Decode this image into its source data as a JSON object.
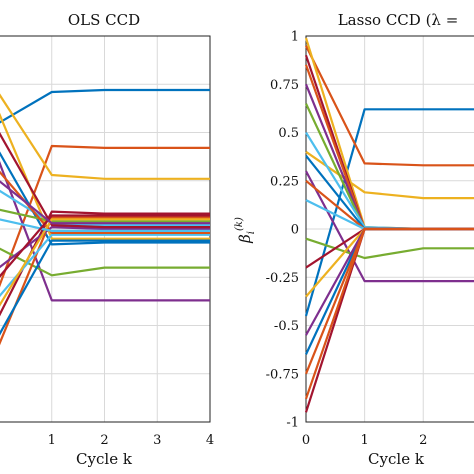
{
  "chart_data": [
    {
      "type": "line",
      "title": "OLS CCD",
      "xlabel": "Cycle k",
      "x": [
        0,
        1,
        2,
        3,
        4
      ],
      "xticks": [
        "1",
        "2",
        "3",
        "4"
      ],
      "xlim": [
        0,
        4
      ],
      "ylim": [
        -1,
        1
      ],
      "grid": true,
      "series": [
        {
          "color": "#0072BD",
          "values": [
            0.55,
            0.71,
            0.72,
            0.72,
            0.72
          ]
        },
        {
          "color": "#D95319",
          "values": [
            -0.3,
            0.43,
            0.42,
            0.42,
            0.42
          ]
        },
        {
          "color": "#EDB120",
          "values": [
            0.7,
            0.28,
            0.26,
            0.26,
            0.26
          ]
        },
        {
          "color": "#7E2F8E",
          "values": [
            0.35,
            -0.37,
            -0.37,
            -0.37,
            -0.37
          ]
        },
        {
          "color": "#77AC30",
          "values": [
            -0.1,
            -0.24,
            -0.2,
            -0.2,
            -0.2
          ]
        },
        {
          "color": "#4DBEEE",
          "values": [
            0.2,
            0.03,
            0.02,
            0.02,
            0.02
          ]
        },
        {
          "color": "#A2142F",
          "values": [
            -0.45,
            0.09,
            0.08,
            0.08,
            0.08
          ]
        },
        {
          "color": "#0072BD",
          "values": [
            0.4,
            -0.08,
            -0.07,
            -0.07,
            -0.07
          ]
        },
        {
          "color": "#D95319",
          "values": [
            -0.6,
            0.06,
            0.06,
            0.06,
            0.06
          ]
        },
        {
          "color": "#EDB120",
          "values": [
            0.6,
            -0.05,
            -0.05,
            -0.05,
            -0.05
          ]
        },
        {
          "color": "#7E2F8E",
          "values": [
            -0.2,
            0.01,
            0.0,
            0.0,
            0.0
          ]
        },
        {
          "color": "#77AC30",
          "values": [
            0.1,
            0.04,
            0.04,
            0.04,
            0.04
          ]
        },
        {
          "color": "#4DBEEE",
          "values": [
            -0.35,
            -0.03,
            -0.03,
            -0.03,
            -0.03
          ]
        },
        {
          "color": "#A2142F",
          "values": [
            0.5,
            0.02,
            0.01,
            0.01,
            0.01
          ]
        },
        {
          "color": "#0072BD",
          "values": [
            -0.55,
            -0.06,
            -0.06,
            -0.06,
            -0.06
          ]
        },
        {
          "color": "#D95319",
          "values": [
            0.3,
            -0.02,
            -0.02,
            -0.02,
            -0.02
          ]
        },
        {
          "color": "#EDB120",
          "values": [
            -0.4,
            0.05,
            0.05,
            0.05,
            0.05
          ]
        },
        {
          "color": "#4DBEEE",
          "values": [
            0.05,
            -0.01,
            -0.01,
            -0.01,
            -0.01
          ]
        },
        {
          "color": "#A2142F",
          "values": [
            -0.25,
            0.07,
            0.07,
            0.07,
            0.07
          ]
        },
        {
          "color": "#7E2F8E",
          "values": [
            0.25,
            0.03,
            0.03,
            0.03,
            0.03
          ]
        }
      ]
    },
    {
      "type": "line",
      "title": "Lasso CCD (λ =",
      "xlabel": "Cycle k",
      "ylabel": "β_i^(k)",
      "x": [
        0,
        1,
        2,
        3
      ],
      "xticks": [
        "0",
        "1",
        "2"
      ],
      "yticks": [
        "1",
        "0.75",
        "0.5",
        "0.25",
        "0",
        "-0.25",
        "-0.5",
        "-0.75",
        "-1"
      ],
      "xlim": [
        0,
        2.9
      ],
      "ylim": [
        -1,
        1
      ],
      "grid": true,
      "series": [
        {
          "color": "#0072BD",
          "values": [
            -0.45,
            0.62,
            0.62,
            0.62
          ]
        },
        {
          "color": "#D95319",
          "values": [
            0.95,
            0.34,
            0.33,
            0.33
          ]
        },
        {
          "color": "#EDB120",
          "values": [
            0.4,
            0.19,
            0.16,
            0.16
          ]
        },
        {
          "color": "#7E2F8E",
          "values": [
            0.3,
            -0.27,
            -0.27,
            -0.27
          ]
        },
        {
          "color": "#77AC30",
          "values": [
            -0.05,
            -0.15,
            -0.1,
            -0.1
          ]
        },
        {
          "color": "#EDB120",
          "values": [
            0.99,
            0.01,
            0.0,
            0.0
          ]
        },
        {
          "color": "#A2142F",
          "values": [
            0.9,
            0.0,
            0.0,
            0.0
          ]
        },
        {
          "color": "#D95319",
          "values": [
            0.85,
            0.0,
            0.0,
            0.0
          ]
        },
        {
          "color": "#7E2F8E",
          "values": [
            0.75,
            0.0,
            0.0,
            0.0
          ]
        },
        {
          "color": "#77AC30",
          "values": [
            0.65,
            0.0,
            0.0,
            0.0
          ]
        },
        {
          "color": "#4DBEEE",
          "values": [
            0.5,
            0.01,
            0.0,
            0.0
          ]
        },
        {
          "color": "#0072BD",
          "values": [
            0.38,
            0.0,
            0.0,
            0.0
          ]
        },
        {
          "color": "#D95319",
          "values": [
            0.25,
            0.0,
            0.0,
            0.0
          ]
        },
        {
          "color": "#4DBEEE",
          "values": [
            0.15,
            0.0,
            0.0,
            0.0
          ]
        },
        {
          "color": "#A2142F",
          "values": [
            -0.2,
            0.0,
            0.0,
            0.0
          ]
        },
        {
          "color": "#0072BD",
          "values": [
            -0.65,
            0.0,
            0.0,
            0.0
          ]
        },
        {
          "color": "#EDB120",
          "values": [
            -0.35,
            0.0,
            0.0,
            0.0
          ]
        },
        {
          "color": "#7E2F8E",
          "values": [
            -0.55,
            0.0,
            0.0,
            0.0
          ]
        },
        {
          "color": "#D95319",
          "values": [
            -0.75,
            0.0,
            0.0,
            0.0
          ]
        },
        {
          "color": "#A2142F",
          "values": [
            -0.95,
            0.0,
            0.0,
            0.0
          ]
        },
        {
          "color": "#D95319",
          "values": [
            -0.88,
            0.0,
            0.0,
            0.0
          ]
        }
      ]
    }
  ]
}
